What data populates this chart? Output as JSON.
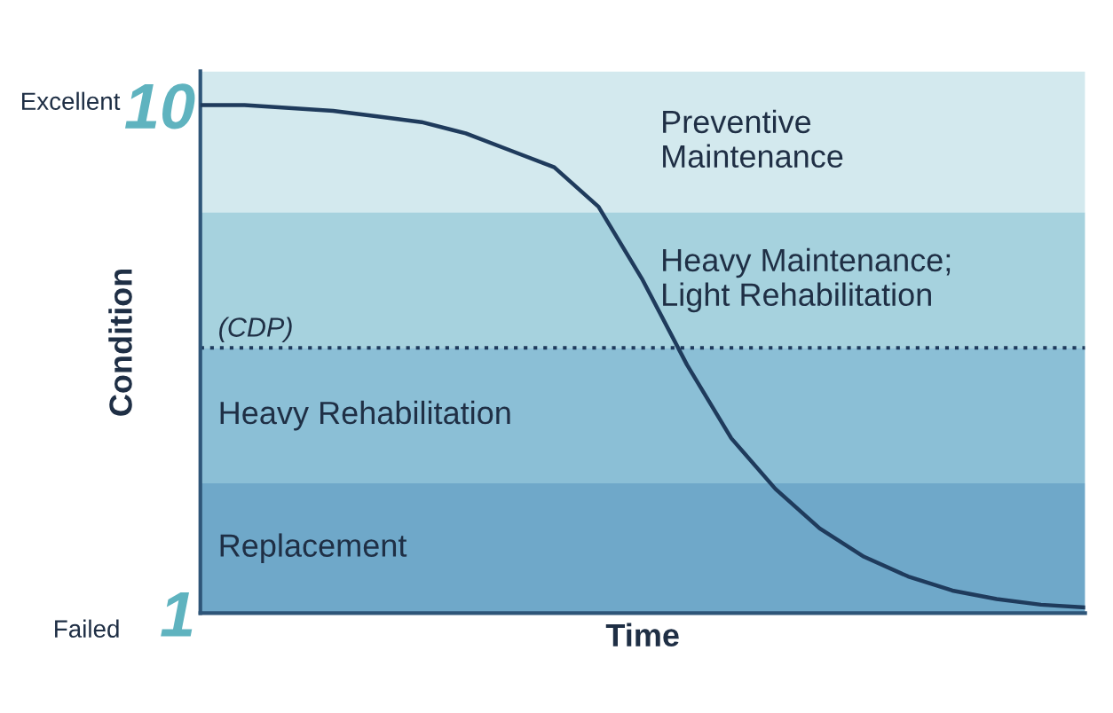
{
  "chart_data": {
    "type": "line",
    "xlabel": "Time",
    "ylabel": "Condition",
    "categories": [
      null,
      null,
      null,
      null,
      null,
      null,
      null,
      null,
      null,
      null,
      null,
      null,
      null,
      null,
      null,
      null,
      null,
      null,
      null,
      null,
      null
    ],
    "series": [
      {
        "color": "#1f3b5c",
        "values": [
          10,
          10,
          9.95,
          9.9,
          9.8,
          9.7,
          9.5,
          9.2,
          8.9,
          8.2,
          6.9,
          5.4,
          4.1,
          3.2,
          2.5,
          2.0,
          1.65,
          1.4,
          1.25,
          1.15,
          1.1
        ]
      }
    ],
    "ylim": [
      1,
      10.6
    ],
    "yticks": [
      10,
      1
    ],
    "bands": [
      {
        "axis": "y",
        "from": 8.1,
        "to": 10.6,
        "label": "Preventive\nMaintenance",
        "color": "#d3e9ee"
      },
      {
        "axis": "y",
        "from": 5.7,
        "to": 8.1,
        "label": "Heavy Maintenance;\nLight Rehabilitation",
        "color": "#a6d2de"
      },
      {
        "axis": "y",
        "from": 3.3,
        "to": 5.7,
        "label": "Heavy Rehabilitation",
        "color": "#8bbfd6"
      },
      {
        "axis": "y",
        "from": 1,
        "to": 3.3,
        "label": "Replacement",
        "color": "#6fa8c9"
      }
    ],
    "ref_lines": [
      {
        "axis": "y",
        "value": 5.7,
        "label": "(CDP)",
        "line_style": "dotted",
        "color": "#1f3b5c"
      }
    ],
    "annotations": [
      "Excellent",
      "Failed"
    ],
    "grid": false,
    "legend": false,
    "marker": "none",
    "line_style": "solid"
  }
}
